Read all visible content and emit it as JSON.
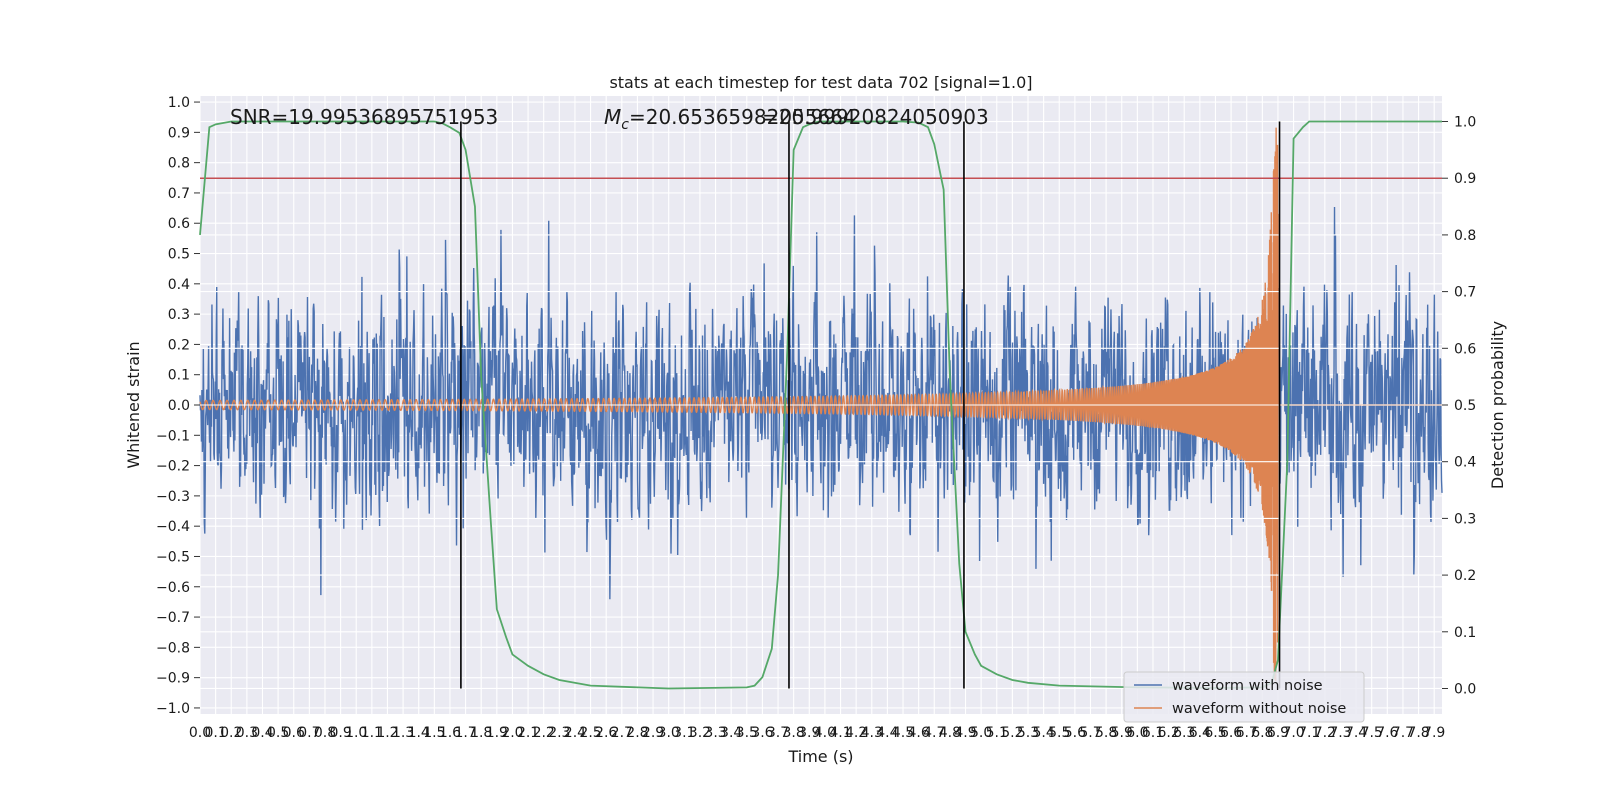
{
  "chart_data": {
    "type": "line",
    "title": "stats at each timestep for test data 702 [signal=1.0]",
    "xlabel": "Time (s)",
    "ylabel": "Whitened strain",
    "y2label": "Detection probability",
    "xlim": [
      0.0,
      7.95
    ],
    "ylim": [
      -1.02,
      1.02
    ],
    "y2lim": [
      -0.045,
      1.045
    ],
    "x_ticks": [
      "0.0",
      "0.1",
      "0.2",
      "0.3",
      "0.4",
      "0.5",
      "0.6",
      "0.7",
      "0.8",
      "0.9",
      "1.0",
      "1.1",
      "1.2",
      "1.3",
      "1.4",
      "1.5",
      "1.6",
      "1.7",
      "1.8",
      "1.9",
      "2.0",
      "2.1",
      "2.2",
      "2.3",
      "2.4",
      "2.5",
      "2.6",
      "2.7",
      "2.8",
      "2.9",
      "3.0",
      "3.1",
      "3.2",
      "3.3",
      "3.4",
      "3.5",
      "3.6",
      "3.7",
      "3.8",
      "3.9",
      "4.0",
      "4.1",
      "4.2",
      "4.3",
      "4.4",
      "4.5",
      "4.6",
      "4.7",
      "4.8",
      "4.9",
      "5.0",
      "5.1",
      "5.2",
      "5.3",
      "5.4",
      "5.5",
      "5.6",
      "5.7",
      "5.8",
      "5.9",
      "6.0",
      "6.1",
      "6.2",
      "6.3",
      "6.4",
      "6.5",
      "6.6",
      "6.7",
      "6.8",
      "6.9",
      "7.0",
      "7.1",
      "7.2",
      "7.3",
      "7.4",
      "7.5",
      "7.6",
      "7.7",
      "7.8",
      "7.9"
    ],
    "y_ticks": [
      "1.0",
      "0.9",
      "0.8",
      "0.7",
      "0.6",
      "0.5",
      "0.4",
      "0.3",
      "0.2",
      "0.1",
      "0.0",
      "−0.1",
      "−0.2",
      "−0.3",
      "−0.4",
      "−0.5",
      "−0.6",
      "−0.7",
      "−0.8",
      "−0.9",
      "−1.0"
    ],
    "y2_ticks": [
      "1.0",
      "0.9",
      "0.8",
      "0.7",
      "0.6",
      "0.5",
      "0.4",
      "0.3",
      "0.2",
      "0.1",
      "0.0"
    ],
    "grid": true,
    "legend_position": "lower-right",
    "annotations": {
      "snr": "SNR=19.99536895751953",
      "mc_symbol": "M",
      "mc_subscript": "c",
      "mc_text": "=20.65365982055664",
      "overlap_text": "=20.99920824050903"
    },
    "series": [
      {
        "name": "waveform with noise",
        "color": "#4c72b0",
        "kind": "noise",
        "typical_amplitude": 0.32,
        "x_range": [
          0.0,
          7.95
        ]
      },
      {
        "name": "waveform without noise",
        "color": "#dd8452",
        "kind": "chirp",
        "merger_time": 6.9,
        "start_amplitude": 0.015,
        "peak_amplitude": 0.92,
        "x_range": [
          0.0,
          7.95
        ]
      },
      {
        "name": "",
        "color": "#55a868",
        "axis": "right",
        "kind": "probability",
        "x": [
          0.0,
          0.06,
          0.1,
          0.2,
          0.5,
          1.0,
          1.5,
          1.55,
          1.6,
          1.66,
          1.7,
          1.76,
          1.8,
          1.86,
          1.9,
          1.96,
          2.0,
          2.1,
          2.2,
          2.3,
          2.5,
          3.0,
          3.5,
          3.55,
          3.6,
          3.66,
          3.7,
          3.76,
          3.8,
          3.86,
          3.9,
          3.96,
          4.0,
          4.5,
          4.6,
          4.66,
          4.7,
          4.76,
          4.8,
          4.86,
          4.9,
          4.96,
          5.0,
          5.1,
          5.2,
          5.3,
          5.5,
          6.0,
          6.5,
          6.8,
          6.86,
          6.9,
          6.96,
          7.0,
          7.06,
          7.1,
          7.5,
          7.95
        ],
        "y": [
          0.8,
          0.99,
          0.995,
          1.0,
          1.0,
          1.0,
          1.0,
          0.997,
          0.99,
          0.98,
          0.95,
          0.85,
          0.55,
          0.3,
          0.14,
          0.09,
          0.06,
          0.04,
          0.025,
          0.015,
          0.005,
          0.0,
          0.002,
          0.005,
          0.02,
          0.07,
          0.2,
          0.6,
          0.95,
          0.99,
          0.995,
          1.0,
          1.0,
          1.0,
          0.998,
          0.99,
          0.96,
          0.88,
          0.55,
          0.22,
          0.1,
          0.06,
          0.04,
          0.025,
          0.015,
          0.01,
          0.005,
          0.002,
          0.001,
          0.002,
          0.01,
          0.05,
          0.4,
          0.97,
          0.99,
          1.0,
          1.0,
          1.0
        ]
      },
      {
        "name": "",
        "color": "#c44e52",
        "axis": "right",
        "kind": "threshold",
        "value": 0.9
      }
    ],
    "vertical_lines": [
      1.67,
      3.77,
      4.89,
      6.91
    ]
  }
}
